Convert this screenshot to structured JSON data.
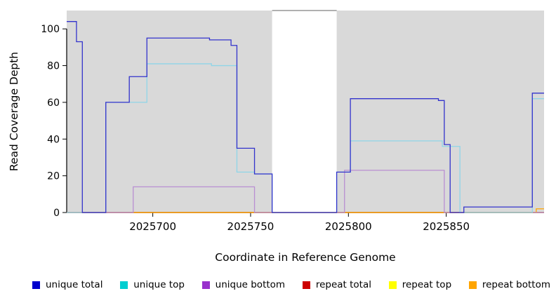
{
  "chart_data": {
    "type": "line",
    "step": "after",
    "title": "",
    "xlabel": "Coordinate in Reference Genome",
    "ylabel": "Read Coverage Depth",
    "xlim": [
      2025656,
      2025900
    ],
    "ylim": [
      0,
      110
    ],
    "x_ticks": [
      2025700,
      2025750,
      2025800,
      2025850
    ],
    "y_ticks": [
      0,
      20,
      40,
      60,
      80,
      100
    ],
    "grid": false,
    "legend_position": "bottom",
    "plot_background": "#ffffff",
    "background_regions": [
      {
        "x0": 2025656,
        "x1": 2025761,
        "color": "#d9d9d9"
      },
      {
        "x0": 2025794,
        "x1": 2025900,
        "color": "#d9d9d9"
      }
    ],
    "gap_top_border": {
      "x0": 2025761,
      "x1": 2025794,
      "color": "#808080"
    },
    "draw_order": [
      4,
      3,
      5,
      2,
      1,
      0
    ],
    "series": [
      {
        "name": "unique total",
        "color": "#0000CD",
        "line_color": "#3333CC",
        "points": [
          [
            2025656,
            104
          ],
          [
            2025661,
            93
          ],
          [
            2025664,
            0
          ],
          [
            2025676,
            60
          ],
          [
            2025688,
            74
          ],
          [
            2025697,
            95
          ],
          [
            2025729,
            94
          ],
          [
            2025740,
            91
          ],
          [
            2025743,
            35
          ],
          [
            2025752,
            21
          ],
          [
            2025761,
            0
          ],
          [
            2025794,
            22
          ],
          [
            2025801,
            62
          ],
          [
            2025846,
            61
          ],
          [
            2025849,
            37
          ],
          [
            2025852,
            0
          ],
          [
            2025859,
            3
          ],
          [
            2025894,
            65
          ]
        ]
      },
      {
        "name": "unique top",
        "color": "#00CED1",
        "line_color": "#8FD5E8",
        "points": [
          [
            2025656,
            0
          ],
          [
            2025676,
            60
          ],
          [
            2025697,
            81
          ],
          [
            2025730,
            80
          ],
          [
            2025743,
            22
          ],
          [
            2025752,
            21
          ],
          [
            2025761,
            0
          ],
          [
            2025794,
            22
          ],
          [
            2025801,
            39
          ],
          [
            2025848,
            36
          ],
          [
            2025857,
            0
          ],
          [
            2025894,
            62
          ]
        ]
      },
      {
        "name": "unique bottom",
        "color": "#9932CC",
        "line_color": "#B98FD2",
        "points": [
          [
            2025656,
            0
          ],
          [
            2025690,
            14
          ],
          [
            2025752,
            0
          ],
          [
            2025798,
            23
          ],
          [
            2025849,
            0
          ]
        ]
      },
      {
        "name": "repeat total",
        "color": "#CD0000",
        "line_color": "#CD0000",
        "points": [
          [
            2025656,
            0
          ]
        ]
      },
      {
        "name": "repeat top",
        "color": "#FFFF00",
        "line_color": "#F2E400",
        "points": [
          [
            2025656,
            0
          ]
        ]
      },
      {
        "name": "repeat bottom",
        "color": "#FFA500",
        "line_color": "#FFA500",
        "points": [
          [
            2025690,
            0
          ],
          [
            2025896,
            2
          ]
        ]
      }
    ]
  }
}
